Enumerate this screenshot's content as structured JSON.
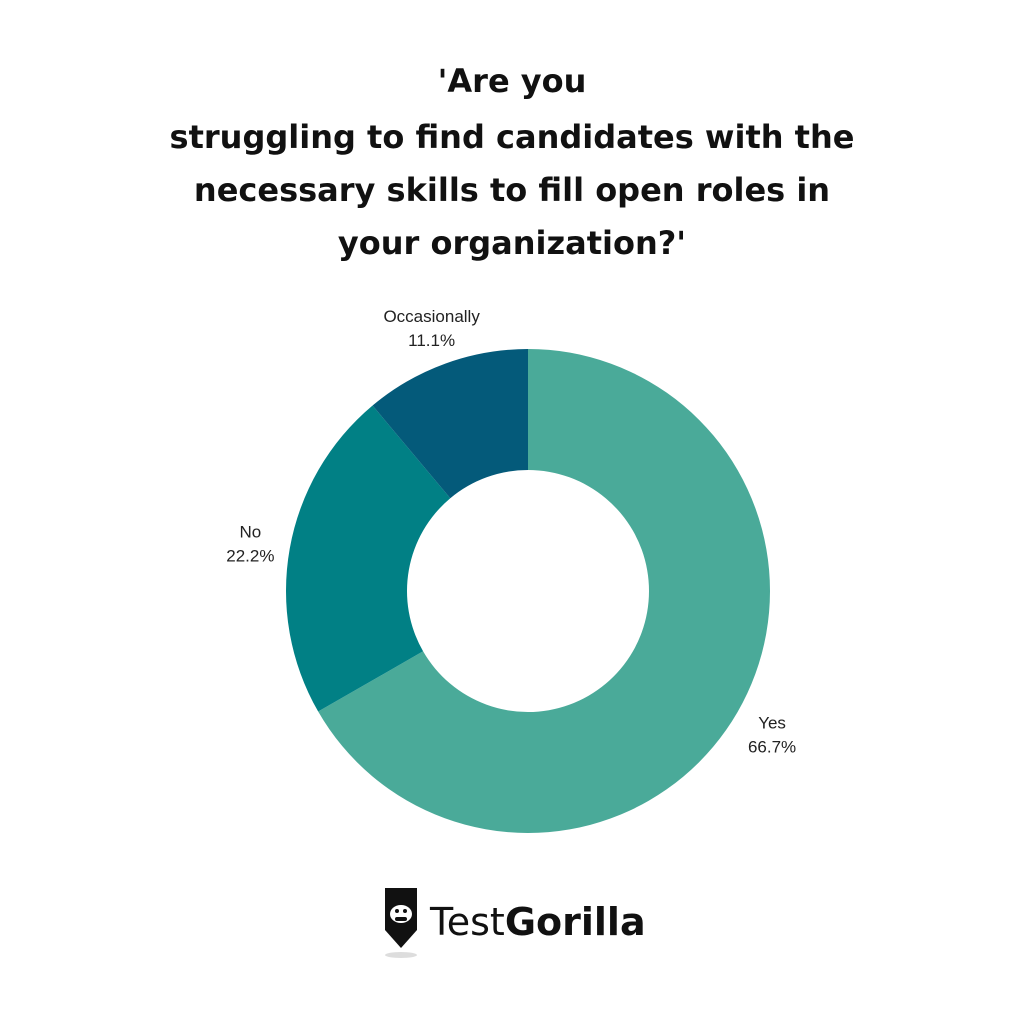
{
  "chart_data": {
    "type": "donut",
    "title": [
      "'Are you",
      "struggling to find candidates with the",
      "necessary skills to fill open roles in",
      "your organization?'"
    ],
    "categories": [
      "Yes",
      "No",
      "Occasionally"
    ],
    "values": [
      66.7,
      22.2,
      11.1
    ],
    "value_labels": [
      "66.7%",
      "22.2%",
      "11.1%"
    ],
    "colors": [
      "#4aaa99",
      "#018085",
      "#045a7a"
    ]
  },
  "brand": [
    "Test",
    "Gorilla"
  ]
}
